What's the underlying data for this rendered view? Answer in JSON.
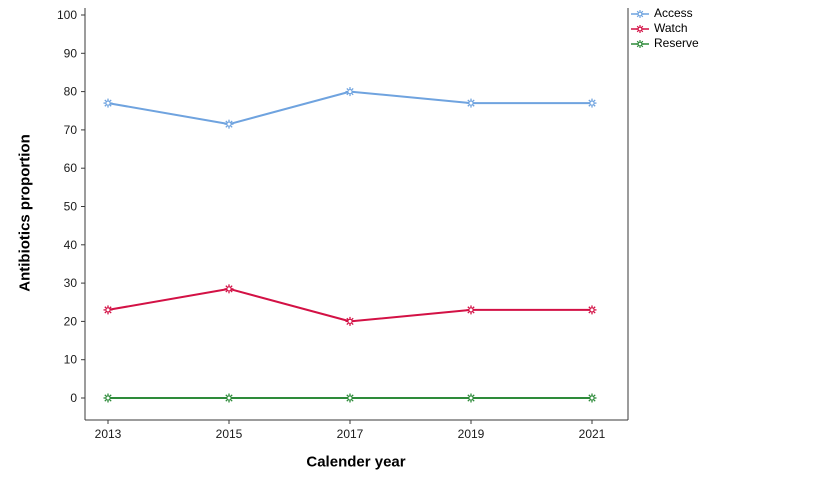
{
  "chart_data": {
    "type": "line",
    "x": [
      2013,
      2015,
      2017,
      2019,
      2021
    ],
    "xticklabels": [
      "2013",
      "2015",
      "2017",
      "2019",
      "2021"
    ],
    "series": [
      {
        "name": "Access",
        "color": "#6FA3DF",
        "values": [
          77,
          71.5,
          80,
          77,
          77
        ]
      },
      {
        "name": "Watch",
        "color": "#D31145",
        "values": [
          23,
          28.5,
          20,
          23,
          23
        ]
      },
      {
        "name": "Reserve",
        "color": "#2E8B3A",
        "values": [
          0,
          0,
          0,
          0,
          0
        ]
      }
    ],
    "title": "",
    "xlabel": "Calender year",
    "ylabel": "Antibiotics proportion",
    "ylim": [
      0,
      100
    ],
    "yticks": [
      0,
      10,
      20,
      30,
      40,
      50,
      60,
      70,
      80,
      90,
      100
    ],
    "grid": false,
    "legend_position": "top-right",
    "axis_color": "#3a3a3a",
    "tick_label_color": "#1a1a1a"
  }
}
